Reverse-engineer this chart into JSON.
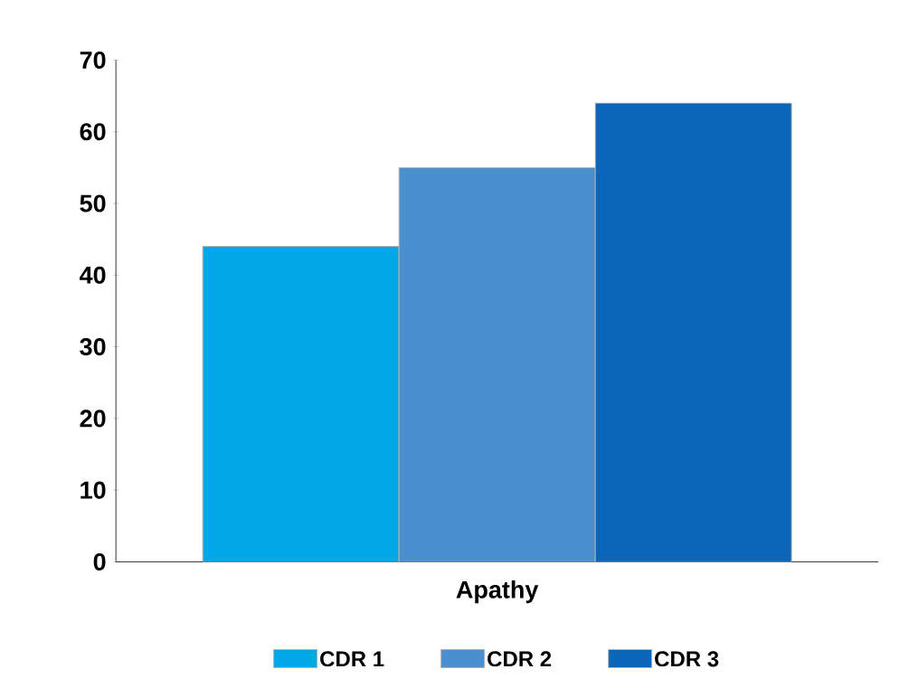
{
  "chart_data": {
    "type": "bar",
    "categories": [
      "Apathy"
    ],
    "series": [
      {
        "name": "CDR 1",
        "color": "#00a8e8",
        "values": [
          44
        ]
      },
      {
        "name": "CDR 2",
        "color": "#4a8fd0",
        "values": [
          55
        ]
      },
      {
        "name": "CDR 3",
        "color": "#0a66b8",
        "values": [
          64
        ]
      }
    ],
    "ylim": [
      0,
      70
    ],
    "yticks": [
      0,
      10,
      20,
      30,
      40,
      50,
      60,
      70
    ],
    "legend": "bottom"
  }
}
